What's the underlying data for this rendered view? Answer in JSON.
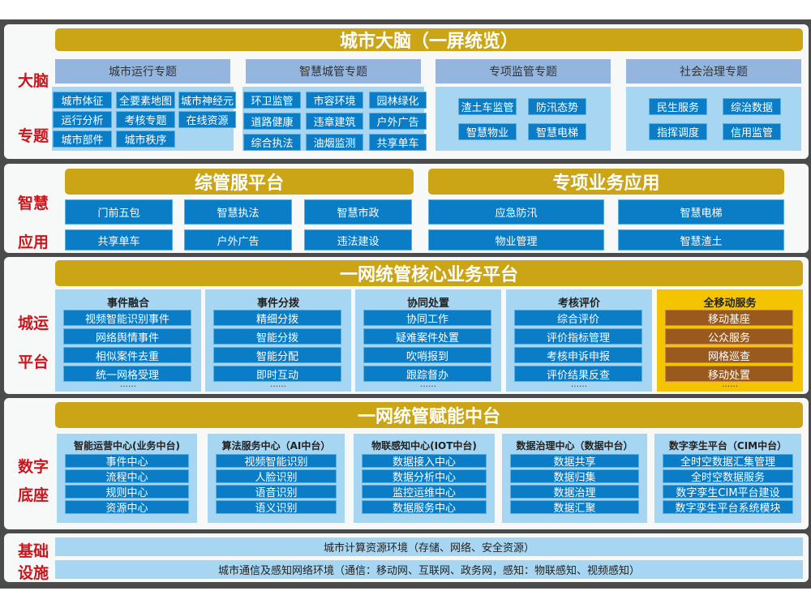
{
  "brain": {
    "label_top": "大脑",
    "label_bottom": "专题",
    "title": "城市大脑（一屏统览）",
    "groups": [
      {
        "title": "城市运行专题",
        "items": [
          "城市体征",
          "全要素地图",
          "城市神经元",
          "运行分析",
          "考核专题",
          "在线资源",
          "城市部件",
          "城市秩序"
        ]
      },
      {
        "title": "智慧城管专题",
        "items": [
          "环卫监管",
          "市容环境",
          "园林绿化",
          "道路健康",
          "违章建筑",
          "户外广告",
          "综合执法",
          "油烟监测",
          "共享单车"
        ]
      },
      {
        "title": "专项监管专题",
        "items": [
          "渣土车监管",
          "防汛态势",
          "智慧物业",
          "智慧电梯"
        ]
      },
      {
        "title": "社会治理专题",
        "items": [
          "民生服务",
          "综治数据",
          "指挥调度",
          "信用监管"
        ]
      }
    ]
  },
  "apps": {
    "label_top": "智慧",
    "label_bottom": "应用",
    "left": {
      "title": "综管服平台",
      "items": [
        "门前五包",
        "智慧执法",
        "智慧市政",
        "共享单车",
        "户外广告",
        "违法建设"
      ]
    },
    "right": {
      "title": "专项业务应用",
      "items": [
        "应急防汛",
        "智慧电梯",
        "物业管理",
        "智慧渣土"
      ]
    }
  },
  "platform": {
    "label_top": "城运",
    "label_bottom": "平台",
    "title": "一网统管核心业务平台",
    "more": "……",
    "columns": [
      {
        "title": "事件融合",
        "items": [
          "视频智能识别事件",
          "网络舆情事件",
          "相似案件去重",
          "统一网格受理"
        ]
      },
      {
        "title": "事件分拨",
        "items": [
          "精细分拨",
          "智能分拨",
          "智能分配",
          "即时互动"
        ]
      },
      {
        "title": "协同处置",
        "items": [
          "协同工作",
          "疑难案件处置",
          "吹哨报到",
          "跟踪督办"
        ]
      },
      {
        "title": "考核评价",
        "items": [
          "综合评价",
          "评价指标管理",
          "考核申诉申报",
          "评价结果反查"
        ]
      },
      {
        "title": "全移动服务",
        "items": [
          "移动基座",
          "公众服务",
          "网格巡查",
          "移动处置"
        ]
      }
    ]
  },
  "base": {
    "label_top": "数字",
    "label_bottom": "底座",
    "title": "一网统管赋能中台",
    "columns": [
      {
        "title": "智能运营中心(业务中台)",
        "items": [
          "事件中心",
          "流程中心",
          "规则中心",
          "资源中心"
        ]
      },
      {
        "title": "算法服务中心（AI中台）",
        "items": [
          "视频智能识别",
          "人脸识别",
          "语音识别",
          "语义识别"
        ]
      },
      {
        "title": "物联感知中心(IOT中台)",
        "items": [
          "数据接入中心",
          "数据分析中心",
          "监控运维中心",
          "数据服务中心"
        ]
      },
      {
        "title": "数据治理中心（数据中台）",
        "items": [
          "数据共享",
          "数据归集",
          "数据治理",
          "数据汇聚"
        ]
      },
      {
        "title": "数字孪生平台（CIM中台）",
        "items": [
          "全时空数据汇集管理",
          "全时空数据服务",
          "数字孪生CIM平台建设",
          "数字孪生平台系统模块"
        ]
      }
    ]
  },
  "infra": {
    "label_top": "基础",
    "label_bottom": "设施",
    "rows": [
      "城市计算资源环境（存储、网络、安全资源）",
      "城市通信及感知网络环境（通信：移动网、互联网、政务网，感知：物联感知、视频感知）"
    ]
  },
  "colors": {
    "gold": "#cba515",
    "blue": "#0a7dc6",
    "light": "#a7d6f2",
    "header": "#94b5de",
    "label": "#c8161d",
    "mobile_bg": "#f5c400",
    "mobile_btn": "#9a5a1e"
  }
}
